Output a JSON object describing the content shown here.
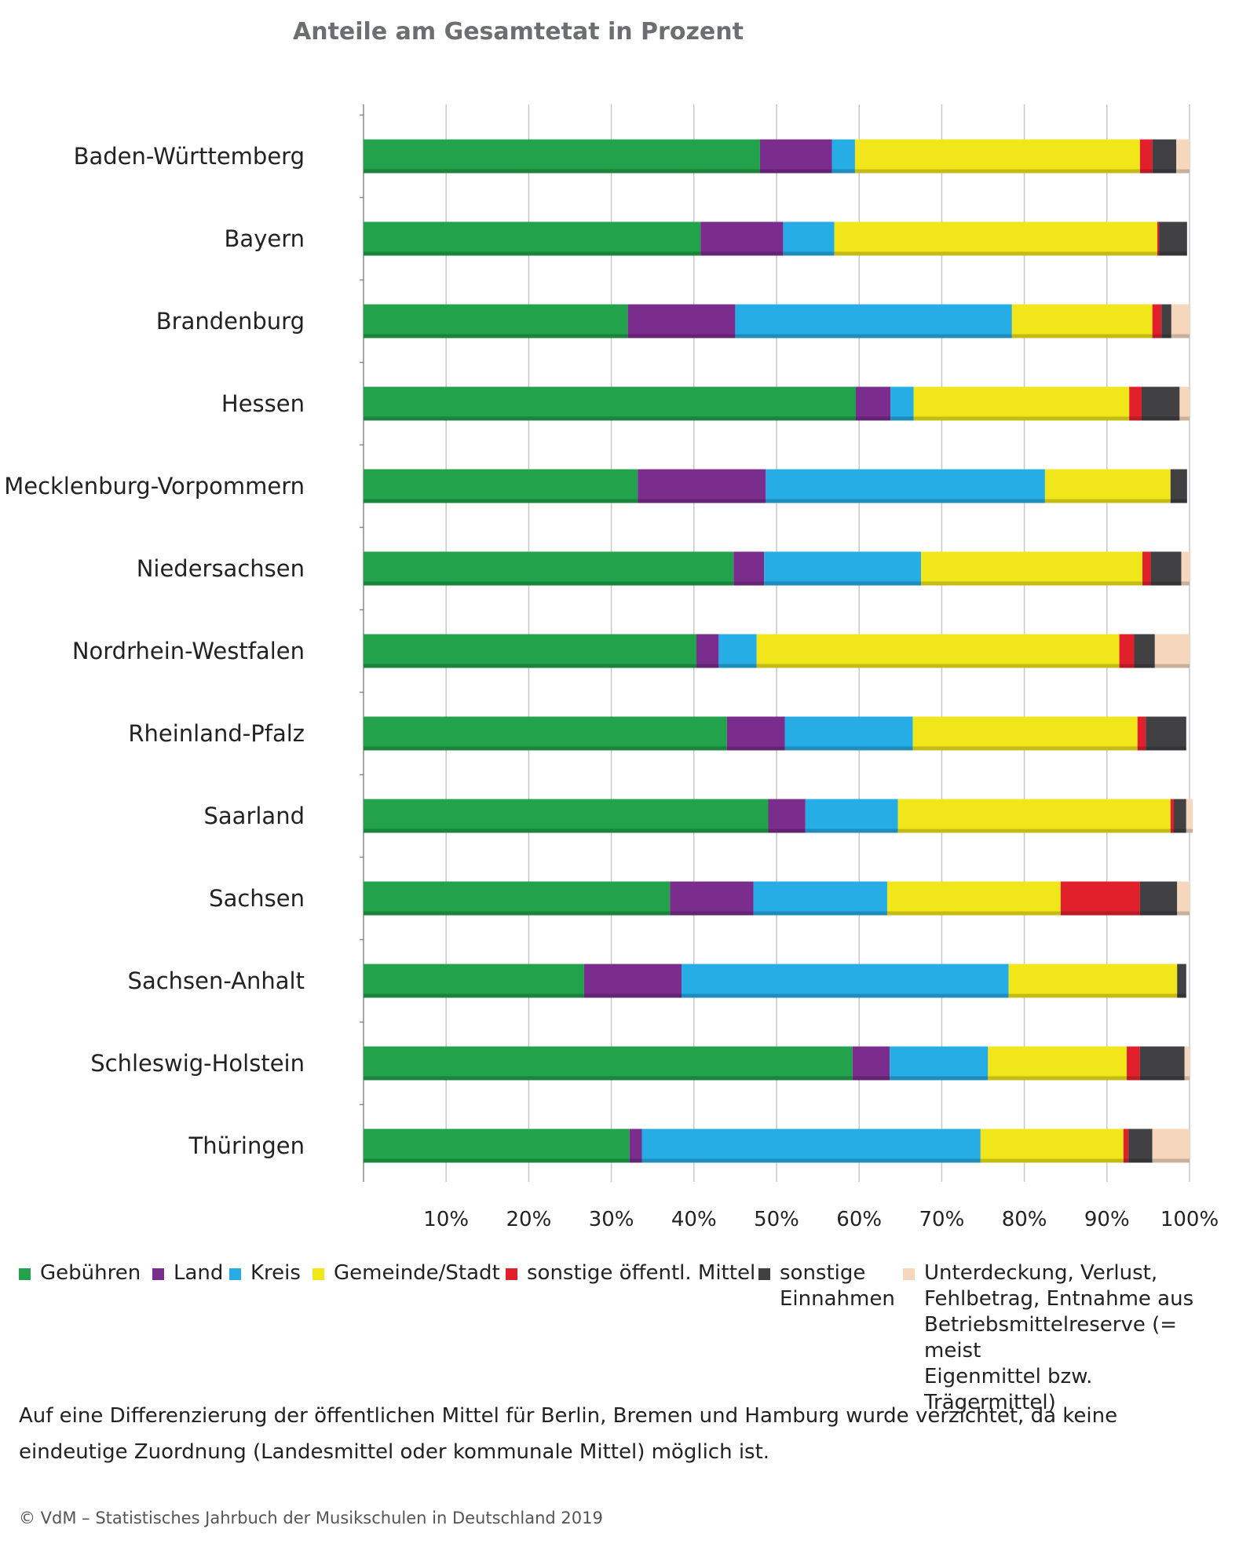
{
  "chart_data": {
    "type": "bar",
    "orientation": "horizontal",
    "stacked": true,
    "title": "Anteile am Gesamtetat in Prozent",
    "xlim": [
      0,
      100
    ],
    "x_ticks": [
      "10%",
      "20%",
      "30%",
      "40%",
      "50%",
      "60%",
      "70%",
      "80%",
      "90%",
      "100%"
    ],
    "grid": true,
    "legend_position": "bottom",
    "categories": [
      "Baden-Württemberg",
      "Bayern",
      "Brandenburg",
      "Hessen",
      "Mecklenburg-Vorpommern",
      "Niedersachsen",
      "Nordrhein-Westfalen",
      "Rheinland-Pfalz",
      "Saarland",
      "Sachsen",
      "Sachsen-Anhalt",
      "Schleswig-Holstein",
      "Thüringen"
    ],
    "series": [
      {
        "name": "Gebühren",
        "color": "#22a24a",
        "values": [
          48.0,
          40.8,
          32.0,
          59.6,
          33.2,
          44.8,
          40.3,
          44.0,
          49.0,
          37.1,
          26.7,
          59.2,
          32.2
        ]
      },
      {
        "name": "Land",
        "color": "#7b2d8e",
        "values": [
          8.7,
          10.0,
          13.0,
          4.2,
          15.5,
          3.7,
          2.7,
          7.0,
          4.5,
          10.1,
          11.8,
          4.5,
          1.5
        ]
      },
      {
        "name": "Kreis",
        "color": "#27ade6",
        "values": [
          2.8,
          6.2,
          33.5,
          2.8,
          33.8,
          19.0,
          4.6,
          15.5,
          11.2,
          16.2,
          39.6,
          11.9,
          41.0
        ]
      },
      {
        "name": "Gemeinde/Stadt",
        "color": "#f0e619",
        "values": [
          34.5,
          39.1,
          17.0,
          26.1,
          15.2,
          26.8,
          43.9,
          27.2,
          33.0,
          21.0,
          20.4,
          16.8,
          17.3
        ]
      },
      {
        "name": "sonstige öffentl. Mittel",
        "color": "#e2202c",
        "values": [
          1.5,
          0.2,
          1.1,
          1.5,
          0.0,
          1.0,
          1.8,
          1.0,
          0.4,
          9.6,
          0.0,
          1.6,
          0.6
        ]
      },
      {
        "name": "sonstige\nEinnahmen",
        "color": "#414042",
        "values": [
          2.9,
          3.4,
          1.2,
          4.6,
          2.0,
          3.7,
          2.5,
          4.9,
          1.5,
          4.5,
          1.1,
          5.4,
          2.9
        ]
      },
      {
        "name": "Unterdeckung, Verlust,\nFehlbetrag, Entnahme aus\nBetriebsmittelreserve (= meist\nEigenmittel bzw. Trägermittel)",
        "color": "#f6d7be",
        "values": [
          1.6,
          0.0,
          2.2,
          1.2,
          0.0,
          1.0,
          4.2,
          0.0,
          0.8,
          1.5,
          0.0,
          0.6,
          4.5
        ]
      }
    ]
  },
  "footnote": "Auf eine Differenzierung der öffentlichen Mittel für Berlin, Bremen und Hamburg wurde verzichtet, da keine eindeutige Zuordnung (Landesmittel oder kommunale Mittel) möglich ist.",
  "source": "© VdM – Statistisches Jahrbuch der Musikschulen in Deutschland 2019"
}
